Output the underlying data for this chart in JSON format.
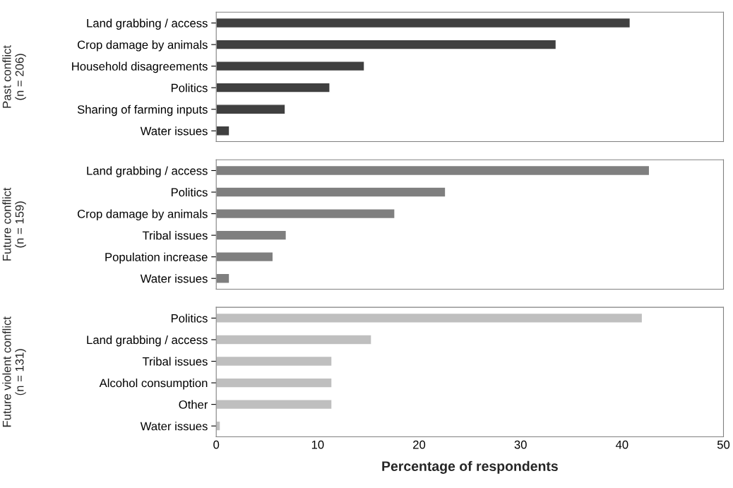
{
  "chart_data": [
    {
      "type": "bar",
      "orientation": "horizontal",
      "ylabel": "Past conflict\n(n = 206)",
      "categories": [
        "Land grabbing / access",
        "Crop damage by animals",
        "Household disagreements",
        "Politics",
        "Sharing of farming inputs",
        "Water issues"
      ],
      "series": [
        {
          "color": "#404040",
          "values": [
            40.8,
            33.5,
            14.6,
            11.2,
            6.8,
            1.3
          ]
        }
      ],
      "xlim": [
        0,
        50
      ],
      "xticks": [
        0,
        10,
        20,
        30,
        40,
        50
      ],
      "tick_labels": "y",
      "grid": false,
      "legend": false
    },
    {
      "type": "bar",
      "orientation": "horizontal",
      "ylabel": "Future conflict\n(n = 159)",
      "categories": [
        "Land grabbing / access",
        "Politics",
        "Crop damage by animals",
        "Tribal issues",
        "Population increase",
        "Water issues"
      ],
      "series": [
        {
          "color": "#7f7f7f",
          "values": [
            42.7,
            22.6,
            17.6,
            6.9,
            5.6,
            1.3
          ]
        }
      ],
      "xlim": [
        0,
        50
      ],
      "xticks": [
        0,
        10,
        20,
        30,
        40,
        50
      ],
      "tick_labels": "y",
      "grid": false,
      "legend": false
    },
    {
      "type": "bar",
      "orientation": "horizontal",
      "ylabel": "Future violent conflict\n(n = 131)",
      "xlabel": "Percentage of respondents",
      "categories": [
        "Politics",
        "Land grabbing / access",
        "Tribal issues",
        "Alcohol consumption",
        "Other",
        "Water issues"
      ],
      "series": [
        {
          "color": "#bfbfbf",
          "values": [
            42.0,
            15.3,
            11.4,
            11.4,
            11.4,
            0.4
          ]
        }
      ],
      "xlim": [
        0,
        50
      ],
      "xticks": [
        0,
        10,
        20,
        30,
        40,
        50
      ],
      "grid": false,
      "legend": false
    }
  ]
}
